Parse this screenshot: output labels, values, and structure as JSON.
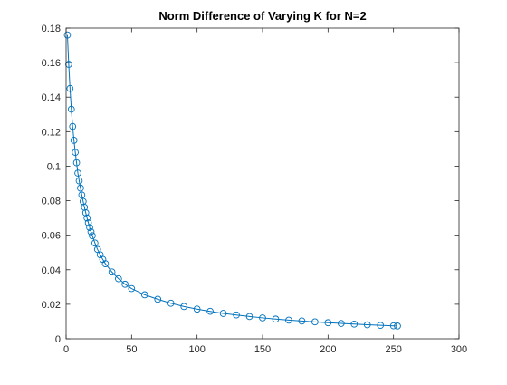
{
  "chart_data": {
    "type": "line",
    "title": "Norm Difference of Varying K for N=2",
    "xlabel": "",
    "ylabel": "",
    "xlim": [
      0,
      300
    ],
    "ylim": [
      0,
      0.18
    ],
    "x_ticks": [
      0,
      50,
      100,
      150,
      200,
      250,
      300
    ],
    "y_ticks": [
      0,
      0.02,
      0.04,
      0.06,
      0.08,
      0.1,
      0.12,
      0.14,
      0.16,
      0.18
    ],
    "x_tick_labels": [
      "0",
      "50",
      "100",
      "150",
      "200",
      "250",
      "300"
    ],
    "y_tick_labels": [
      "0",
      "0.02",
      "0.04",
      "0.06",
      "0.08",
      "0.1",
      "0.12",
      "0.14",
      "0.16",
      "0.18"
    ],
    "grid": false,
    "marker": "circle",
    "series": [
      {
        "name": "",
        "color": "#0072BD",
        "x": [
          1,
          2,
          3,
          4,
          5,
          6,
          7,
          8,
          9,
          10,
          11,
          12,
          13,
          14,
          15,
          16,
          17,
          18,
          19,
          20,
          22,
          24,
          26,
          28,
          30,
          35,
          40,
          45,
          50,
          60,
          70,
          80,
          90,
          100,
          110,
          120,
          130,
          140,
          150,
          160,
          170,
          180,
          190,
          200,
          210,
          220,
          230,
          240,
          250,
          253
        ],
        "y": [
          0.176,
          0.159,
          0.145,
          0.133,
          0.123,
          0.115,
          0.108,
          0.102,
          0.096,
          0.0915,
          0.0873,
          0.0833,
          0.0796,
          0.0762,
          0.073,
          0.07,
          0.0672,
          0.0645,
          0.062,
          0.0597,
          0.0555,
          0.0518,
          0.0487,
          0.046,
          0.0435,
          0.0387,
          0.0348,
          0.0316,
          0.0291,
          0.0255,
          0.0229,
          0.0206,
          0.0187,
          0.0172,
          0.0159,
          0.0147,
          0.0138,
          0.0129,
          0.0121,
          0.0114,
          0.0108,
          0.0103,
          0.0098,
          0.0093,
          0.0089,
          0.0085,
          0.0081,
          0.0078,
          0.0075,
          0.0074
        ]
      }
    ]
  }
}
